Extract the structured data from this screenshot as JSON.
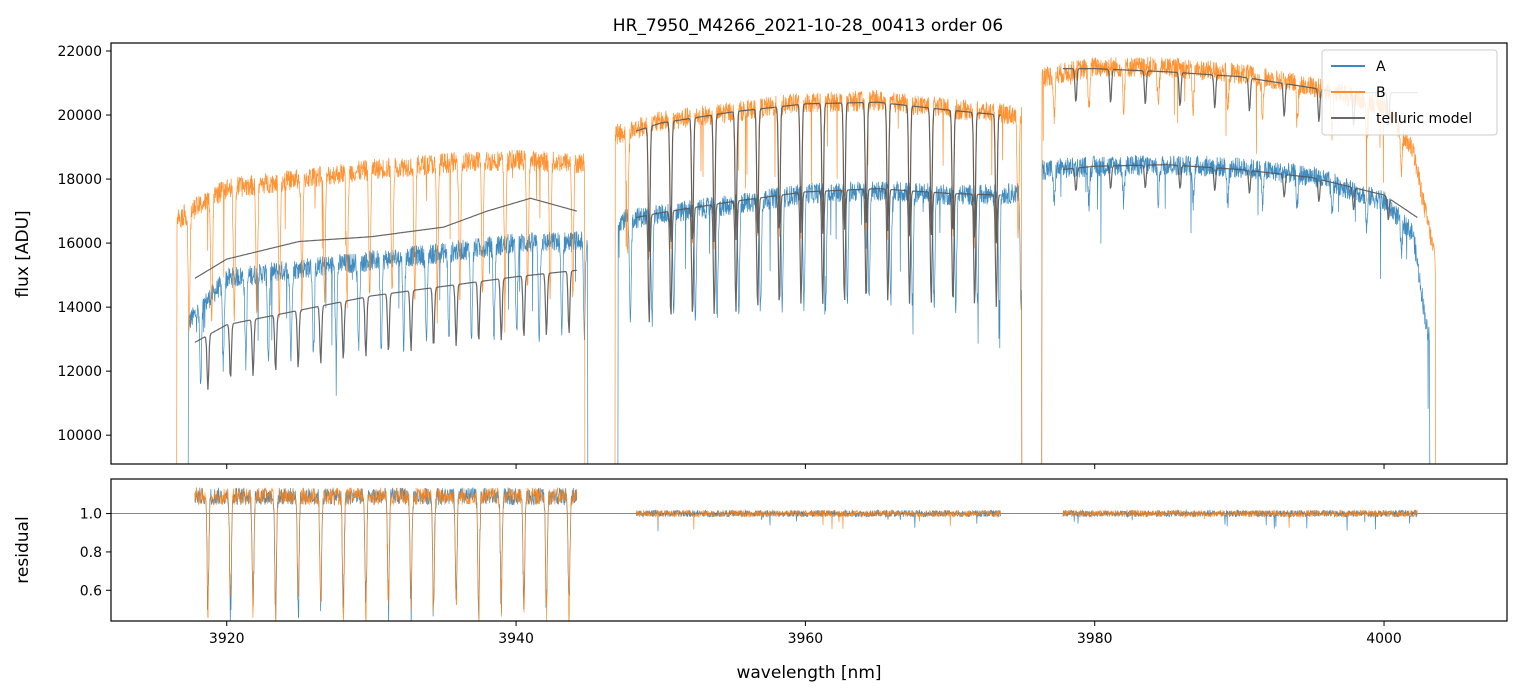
{
  "figure": {
    "title": "HR_7950_M4266_2021-10-28_00413  order 06"
  },
  "chart_data": [
    {
      "type": "line",
      "panel": "top",
      "title": "HR_7950_M4266_2021-10-28_00413  order 06",
      "xlabel": "",
      "ylabel": "flux [ADU]",
      "xlim": [
        3912,
        4008.5
      ],
      "ylim": [
        9100,
        22250
      ],
      "xticks": [
        3920,
        3940,
        3960,
        3980,
        4000
      ],
      "yticks": [
        10000,
        12000,
        14000,
        16000,
        18000,
        20000,
        22000
      ],
      "ytick_labels": [
        "10000",
        "12000",
        "14000",
        "16000",
        "18000",
        "20000",
        "22000"
      ],
      "grid": false,
      "legend_position": "top-right",
      "legend": [
        "A",
        "B",
        "telluric model"
      ],
      "series": [
        {
          "name": "A",
          "color": "#1f77b4",
          "segments": [
            {
              "x_start": 3917.3,
              "x_end": 3945.0,
              "continuum": [
                [
                  3917.3,
                  13500
                ],
                [
                  3920,
                  14900
                ],
                [
                  3925,
                  15200
                ],
                [
                  3930,
                  15450
                ],
                [
                  3935,
                  15700
                ],
                [
                  3940,
                  16000
                ],
                [
                  3944.5,
                  16050
                ]
              ],
              "line_spacing": 1.56,
              "line_depth": 0.18
            },
            {
              "x_start": 3947.0,
              "x_end": 3975.0,
              "continuum": [
                [
                  3947.0,
                  16700
                ],
                [
                  3950,
                  16900
                ],
                [
                  3955,
                  17200
                ],
                [
                  3960,
                  17550
                ],
                [
                  3965,
                  17650
                ],
                [
                  3970,
                  17500
                ],
                [
                  3974.8,
                  17550
                ]
              ],
              "line_spacing": 1.5,
              "line_depth": 0.2
            },
            {
              "x_start": 3976.3,
              "x_end": 4003.2,
              "continuum": [
                [
                  3976.5,
                  18300
                ],
                [
                  3980,
                  18400
                ],
                [
                  3985,
                  18450
                ],
                [
                  3990,
                  18350
                ],
                [
                  3995,
                  18100
                ],
                [
                  4000,
                  17300
                ],
                [
                  4002,
                  16300
                ],
                [
                  4003,
                  13200
                ]
              ],
              "line_spacing": 2.4,
              "line_depth": 0.06
            }
          ]
        },
        {
          "name": "B",
          "color": "#ff7f0e",
          "segments": [
            {
              "x_start": 3916.5,
              "x_end": 3944.8,
              "continuum": [
                [
                  3916.8,
                  16800
                ],
                [
                  3920,
                  17700
                ],
                [
                  3925,
                  18000
                ],
                [
                  3930,
                  18300
                ],
                [
                  3935,
                  18500
                ],
                [
                  3940,
                  18600
                ],
                [
                  3944.5,
                  18500
                ]
              ],
              "line_spacing": 1.56,
              "line_depth": 0.22
            },
            {
              "x_start": 3946.8,
              "x_end": 3975.0,
              "continuum": [
                [
                  3947.0,
                  19400
                ],
                [
                  3950,
                  19800
                ],
                [
                  3955,
                  20100
                ],
                [
                  3960,
                  20400
                ],
                [
                  3965,
                  20450
                ],
                [
                  3970,
                  20200
                ],
                [
                  3974.8,
                  20000
                ]
              ],
              "line_spacing": 1.5,
              "line_depth": 0.2
            },
            {
              "x_start": 3976.3,
              "x_end": 4003.6,
              "continuum": [
                [
                  3976.5,
                  21200
                ],
                [
                  3980,
                  21500
                ],
                [
                  3985,
                  21500
                ],
                [
                  3990,
                  21300
                ],
                [
                  3995,
                  20900
                ],
                [
                  4000,
                  20300
                ],
                [
                  4002,
                  18900
                ],
                [
                  4003.4,
                  15800
                ]
              ],
              "line_spacing": 2.4,
              "line_depth": 0.06
            }
          ]
        },
        {
          "name": "telluric model",
          "color": "#555555",
          "segments": [
            {
              "x_start": 3917.8,
              "x_end": 3944.2,
              "continuum": [
                [
                  3917.8,
                  14900
                ],
                [
                  3920,
                  15500
                ],
                [
                  3925,
                  16050
                ],
                [
                  3930,
                  16200
                ],
                [
                  3935,
                  16500
                ],
                [
                  3938,
                  17000
                ],
                [
                  3941,
                  17400
                ],
                [
                  3944.2,
                  17000
                ]
              ],
              "line_spacing": 0,
              "line_depth": 0
            },
            {
              "x_start": 3917.8,
              "x_end": 3944.2,
              "continuum": [
                [
                  3917.8,
                  12900
                ],
                [
                  3920,
                  13450
                ],
                [
                  3925,
                  13900
                ],
                [
                  3930,
                  14350
                ],
                [
                  3935,
                  14650
                ],
                [
                  3940,
                  14950
                ],
                [
                  3944.2,
                  15150
                ]
              ],
              "line_spacing": 1.56,
              "line_depth": 0.13
            },
            {
              "x_start": 3948.3,
              "x_end": 3973.5,
              "continuum": [
                [
                  3948.3,
                  19500
                ],
                [
                  3950,
                  19750
                ],
                [
                  3955,
                  20100
                ],
                [
                  3960,
                  20350
                ],
                [
                  3965,
                  20400
                ],
                [
                  3970,
                  20150
                ],
                [
                  3973.5,
                  20000
                ]
              ],
              "line_spacing": 1.5,
              "line_depth": 0.2
            },
            {
              "x_start": 3948.3,
              "x_end": 3973.5,
              "continuum": [
                [
                  3948.3,
                  16800
                ],
                [
                  3950,
                  16950
                ],
                [
                  3955,
                  17300
                ],
                [
                  3960,
                  17600
                ],
                [
                  3965,
                  17700
                ],
                [
                  3970,
                  17550
                ],
                [
                  3973.5,
                  17500
                ]
              ],
              "line_spacing": 1.5,
              "line_depth": 0.2
            },
            {
              "x_start": 3977.8,
              "x_end": 4002.3,
              "continuum": [
                [
                  3977.8,
                  21450
                ],
                [
                  3980,
                  21450
                ],
                [
                  3985,
                  21350
                ],
                [
                  3990,
                  21200
                ],
                [
                  3995,
                  20850
                ],
                [
                  3997,
                  20700
                ]
              ],
              "line_spacing": 2.4,
              "line_depth": 0.05
            },
            {
              "x_start": 3977.8,
              "x_end": 4002.3,
              "continuum": [
                [
                  3977.8,
                  18300
                ],
                [
                  3980,
                  18400
                ],
                [
                  3985,
                  18450
                ],
                [
                  3990,
                  18300
                ],
                [
                  3995,
                  18050
                ],
                [
                  4000,
                  17500
                ],
                [
                  4002.3,
                  16800
                ]
              ],
              "line_spacing": 2.4,
              "line_depth": 0.04
            }
          ]
        }
      ]
    },
    {
      "type": "line",
      "panel": "bottom",
      "xlabel": "wavelength [nm]",
      "ylabel": "residual",
      "xlim": [
        3912,
        4008.5
      ],
      "ylim": [
        0.44,
        1.18
      ],
      "xticks": [
        3920,
        3940,
        3960,
        3980,
        4000
      ],
      "xtick_labels": [
        "3920",
        "3940",
        "3960",
        "3980",
        "4000"
      ],
      "yticks": [
        0.6,
        0.8,
        1.0
      ],
      "ytick_labels": [
        "0.6",
        "0.8",
        "1.0"
      ],
      "reference_line": 1.0,
      "series": [
        {
          "name": "A",
          "color": "#1f77b4",
          "segments": [
            [
              3917.8,
              3944.2
            ],
            [
              3948.3,
              3973.5
            ],
            [
              3977.8,
              4002.3
            ]
          ]
        },
        {
          "name": "B",
          "color": "#ff7f0e",
          "segments": [
            [
              3917.8,
              3944.2
            ],
            [
              3948.3,
              3973.5
            ],
            [
              3977.8,
              4002.3
            ]
          ]
        }
      ]
    }
  ]
}
